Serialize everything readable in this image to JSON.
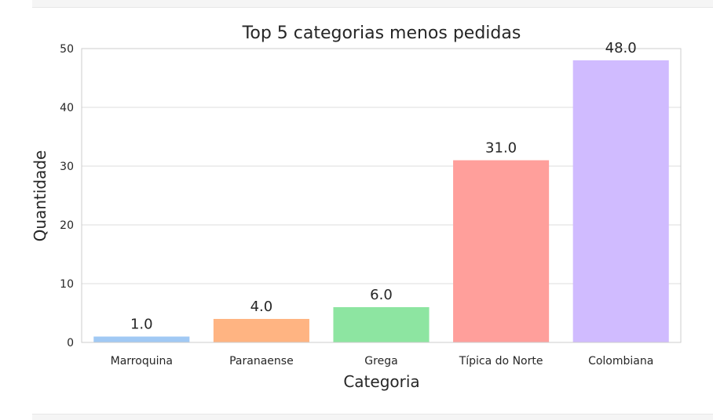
{
  "chart_data": {
    "type": "bar",
    "title": "Top 5 categorias menos pedidas",
    "xlabel": "Categoria",
    "ylabel": "Quantidade",
    "categories": [
      "Marroquina",
      "Paranaense",
      "Grega",
      "Típica do Norte",
      "Colombiana"
    ],
    "values": [
      1.0,
      4.0,
      6.0,
      31.0,
      48.0
    ],
    "value_labels": [
      "1.0",
      "4.0",
      "6.0",
      "31.0",
      "48.0"
    ],
    "colors": [
      "#a1c9f4",
      "#ffb482",
      "#8de5a1",
      "#ff9f9b",
      "#d0bbff"
    ],
    "ylim": [
      0,
      50
    ],
    "yticks": [
      0,
      10,
      20,
      30,
      40,
      50
    ],
    "ytick_labels": [
      "0",
      "10",
      "20",
      "30",
      "40",
      "50"
    ],
    "grid": true,
    "legend": "none"
  }
}
